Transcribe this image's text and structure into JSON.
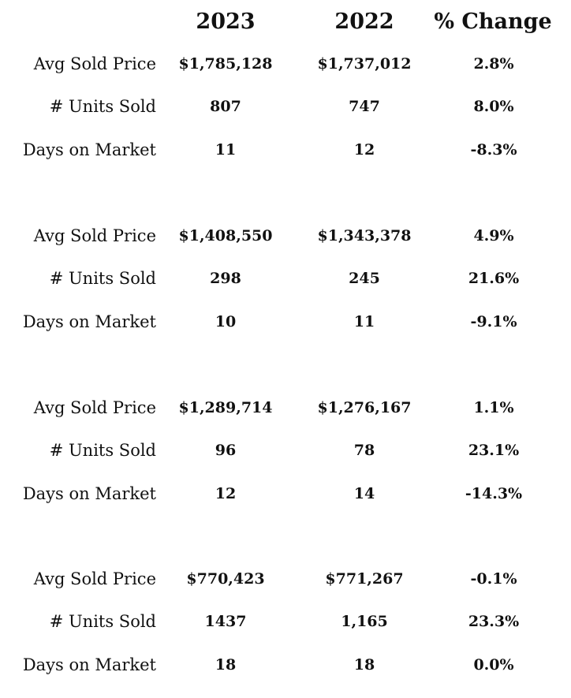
{
  "header": {
    "col_2023": "2023",
    "col_2022": "2022",
    "col_change": "% Change"
  },
  "groups": [
    {
      "rows": [
        {
          "label": "Avg Sold Price",
          "v2023": "$1,785,128",
          "v2022": "$1,737,012",
          "change": "2.8%"
        },
        {
          "label": "# Units Sold",
          "v2023": "807",
          "v2022": "747",
          "change": "8.0%"
        },
        {
          "label": "Days on Market",
          "v2023": "11",
          "v2022": "12",
          "change": "-8.3%"
        }
      ]
    },
    {
      "rows": [
        {
          "label": "Avg Sold Price",
          "v2023": "$1,408,550",
          "v2022": "$1,343,378",
          "change": "4.9%"
        },
        {
          "label": "# Units Sold",
          "v2023": "298",
          "v2022": "245",
          "change": "21.6%"
        },
        {
          "label": "Days on Market",
          "v2023": "10",
          "v2022": "11",
          "change": "-9.1%"
        }
      ]
    },
    {
      "rows": [
        {
          "label": "Avg Sold Price",
          "v2023": "$1,289,714",
          "v2022": "$1,276,167",
          "change": "1.1%"
        },
        {
          "label": "# Units Sold",
          "v2023": "96",
          "v2022": "78",
          "change": "23.1%"
        },
        {
          "label": "Days on Market",
          "v2023": "12",
          "v2022": "14",
          "change": "-14.3%"
        }
      ]
    },
    {
      "rows": [
        {
          "label": "Avg Sold Price",
          "v2023": "$770,423",
          "v2022": "$771,267",
          "change": "-0.1%"
        },
        {
          "label": "# Units Sold",
          "v2023": "1437",
          "v2022": "1,165",
          "change": "23.3%"
        },
        {
          "label": "Days on Market",
          "v2023": "18",
          "v2022": "18",
          "change": "0.0%"
        }
      ]
    }
  ]
}
